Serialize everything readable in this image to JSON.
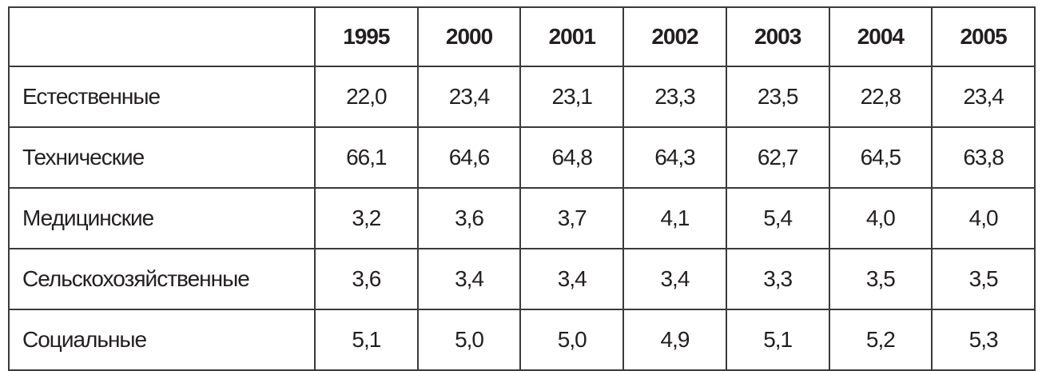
{
  "table": {
    "columns": [
      "1995",
      "2000",
      "2001",
      "2002",
      "2003",
      "2004",
      "2005"
    ],
    "rows": [
      {
        "label": "Естественные",
        "values": [
          "22,0",
          "23,4",
          "23,1",
          "23,3",
          "23,5",
          "22,8",
          "23,4"
        ]
      },
      {
        "label": "Технические",
        "values": [
          "66,1",
          "64,6",
          "64,8",
          "64,3",
          "62,7",
          "64,5",
          "63,8"
        ]
      },
      {
        "label": "Медицинские",
        "values": [
          "3,2",
          "3,6",
          "3,7",
          "4,1",
          "5,4",
          "4,0",
          "4,0"
        ]
      },
      {
        "label": "Сельскохозяйственные",
        "values": [
          "3,6",
          "3,4",
          "3,4",
          "3,4",
          "3,3",
          "3,5",
          "3,5"
        ]
      },
      {
        "label": "Социальные",
        "values": [
          "5,1",
          "5,0",
          "5,0",
          "4,9",
          "5,1",
          "5,2",
          "5,3"
        ]
      }
    ]
  }
}
